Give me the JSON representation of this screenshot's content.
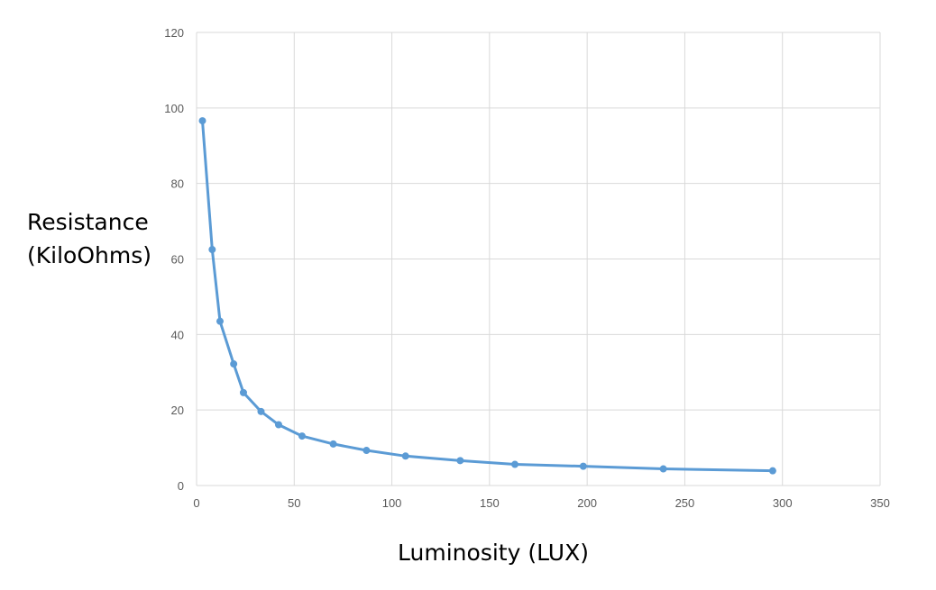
{
  "chart_data": {
    "type": "line",
    "title": "",
    "xlabel": "Luminosity (LUX)",
    "ylabel_lines": [
      "Resistance",
      "(KiloOhms)"
    ],
    "xlim": [
      0,
      350
    ],
    "ylim": [
      0,
      120
    ],
    "xticks": [
      0,
      50,
      100,
      150,
      200,
      250,
      300,
      350
    ],
    "yticks": [
      0,
      20,
      40,
      60,
      80,
      100,
      120
    ],
    "grid": true,
    "legend": "none",
    "series": [
      {
        "color": "#5b9bd5",
        "x": [
          3,
          8,
          12,
          19,
          24,
          33,
          42,
          54,
          70,
          87,
          107,
          135,
          163,
          198,
          239,
          295
        ],
        "y": [
          96.6,
          62.5,
          43.5,
          32.2,
          24.6,
          19.6,
          16.1,
          13.1,
          11.0,
          9.3,
          7.8,
          6.6,
          5.6,
          5.1,
          4.4,
          3.9
        ]
      }
    ]
  }
}
